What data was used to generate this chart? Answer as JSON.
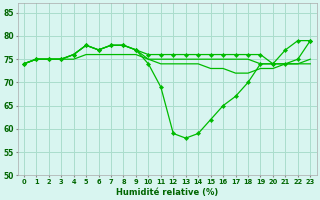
{
  "xlabel": "Humidité relative (%)",
  "background_color": "#d8f5f0",
  "grid_color": "#aaddcc",
  "line_color": "#00bb00",
  "ylim": [
    50,
    87
  ],
  "xlim": [
    -0.5,
    23.5
  ],
  "yticks": [
    50,
    55,
    60,
    65,
    70,
    75,
    80,
    85
  ],
  "xticks": [
    0,
    1,
    2,
    3,
    4,
    5,
    6,
    7,
    8,
    9,
    10,
    11,
    12,
    13,
    14,
    15,
    16,
    17,
    18,
    19,
    20,
    21,
    22,
    23
  ],
  "series": [
    {
      "y": [
        74,
        75,
        75,
        75,
        75,
        76,
        76,
        76,
        76,
        76,
        75,
        75,
        75,
        75,
        75,
        75,
        75,
        75,
        75,
        74,
        74,
        74,
        74,
        74
      ],
      "marker": false,
      "lw": 0.9
    },
    {
      "y": [
        74,
        75,
        75,
        75,
        76,
        78,
        77,
        78,
        78,
        77,
        76,
        76,
        76,
        76,
        76,
        76,
        76,
        76,
        76,
        76,
        74,
        74,
        75,
        79
      ],
      "marker": true,
      "lw": 0.9
    },
    {
      "y": [
        74,
        75,
        75,
        75,
        76,
        78,
        77,
        78,
        78,
        77,
        75,
        74,
        74,
        74,
        74,
        73,
        73,
        72,
        72,
        73,
        73,
        74,
        74,
        75
      ],
      "marker": false,
      "lw": 0.9
    },
    {
      "y": [
        74,
        75,
        75,
        75,
        76,
        78,
        77,
        78,
        78,
        77,
        74,
        69,
        59,
        58,
        59,
        62,
        65,
        67,
        70,
        74,
        74,
        77,
        79,
        79
      ],
      "marker": true,
      "lw": 0.9
    }
  ]
}
